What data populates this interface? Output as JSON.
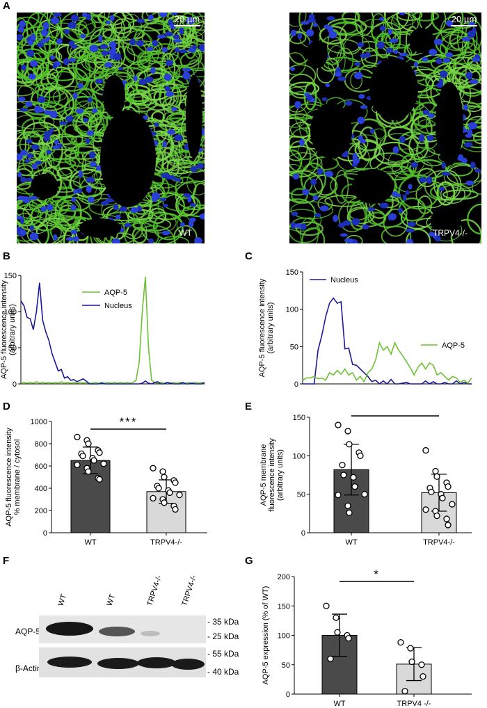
{
  "panels": {
    "A": "A",
    "B": "B",
    "C": "C",
    "D": "D",
    "E": "E",
    "F": "F",
    "G": "G"
  },
  "micrographs": {
    "left": {
      "scale": "20 µm",
      "label": "WT"
    },
    "right": {
      "scale": "20 µm",
      "label": "TRPV4-/-"
    }
  },
  "colors": {
    "aqp5": "#6cc233",
    "nucleus": "#1a1a9a",
    "wt_bar": "#4a4a4a",
    "ko_bar": "#d9d9d9"
  },
  "chart_data": [
    {
      "id": "B",
      "type": "line",
      "ylabel": [
        "AQP-5 fluorescence intensity",
        "(arbitrary units)"
      ],
      "ylim": [
        0,
        150
      ],
      "yticks": [
        0,
        50,
        100,
        150
      ],
      "legend": "top-center",
      "series": [
        {
          "name": "AQP-5",
          "color": "#6cc233",
          "y": [
            2,
            2,
            1,
            2,
            1,
            3,
            1,
            2,
            1,
            2,
            1,
            2,
            1,
            3,
            1,
            2,
            1,
            2,
            1,
            2,
            1,
            2,
            1,
            1,
            2,
            1,
            2,
            1,
            2,
            1,
            2,
            1,
            2,
            1,
            2,
            1,
            2,
            5,
            30,
            100,
            148,
            50,
            5,
            2,
            1,
            2,
            1,
            2,
            1,
            2,
            1,
            2,
            1,
            1,
            2,
            1,
            2,
            1,
            2,
            1
          ]
        },
        {
          "name": "Nucleus",
          "color": "#1a1a9a",
          "y": [
            115,
            108,
            92,
            90,
            75,
            100,
            140,
            88,
            72,
            60,
            42,
            30,
            18,
            20,
            8,
            10,
            5,
            6,
            3,
            5,
            7,
            4,
            0,
            0,
            0,
            0,
            1,
            0,
            0,
            0,
            0,
            0,
            0,
            0,
            0,
            0,
            0,
            0,
            0,
            1,
            4,
            1,
            0,
            2,
            3,
            0,
            0,
            2,
            1,
            0,
            0,
            0,
            2,
            0,
            0,
            1,
            0,
            0,
            0,
            2
          ]
        }
      ]
    },
    {
      "id": "C",
      "type": "line",
      "ylabel": [
        "AQP-5 fluorescence intensity",
        "(arbitrary units)"
      ],
      "ylim": [
        0,
        150
      ],
      "yticks": [
        0,
        50,
        100,
        150
      ],
      "legend": "top-left",
      "series": [
        {
          "name": "Nucleus",
          "color": "#1a1a9a",
          "y": [
            0,
            0,
            0,
            0,
            45,
            65,
            90,
            108,
            115,
            108,
            110,
            47,
            48,
            26,
            25,
            20,
            15,
            10,
            3,
            5,
            0,
            4,
            0,
            6,
            0,
            0,
            1,
            2,
            0,
            0,
            0,
            0,
            4,
            0,
            3,
            0,
            0,
            2,
            0,
            0,
            4,
            0,
            2,
            0,
            0
          ]
        },
        {
          "name": "AQP-5",
          "color": "#6cc233",
          "y": [
            5,
            8,
            8,
            10,
            7,
            8,
            5,
            15,
            12,
            18,
            13,
            20,
            12,
            15,
            5,
            10,
            3,
            15,
            20,
            32,
            55,
            45,
            50,
            40,
            55,
            45,
            38,
            30,
            22,
            12,
            22,
            28,
            20,
            28,
            25,
            12,
            15,
            10,
            5,
            10,
            8,
            2,
            5,
            1,
            8
          ]
        }
      ]
    },
    {
      "id": "D",
      "type": "bar",
      "ylabel": [
        "AQP-5 fluorescence intensity",
        "% membrane / cytosol"
      ],
      "ylim": [
        0,
        1000
      ],
      "yticks": [
        0,
        200,
        400,
        600,
        800,
        1000
      ],
      "categories": [
        "WT",
        "TRPV4-/-"
      ],
      "values": [
        650,
        370
      ],
      "sd": [
        120,
        105
      ],
      "significance": "***",
      "points": [
        [
          860,
          830,
          800,
          740,
          720,
          710,
          690,
          670,
          650,
          620,
          610,
          580,
          550,
          490,
          480
        ],
        [
          580,
          550,
          500,
          470,
          450,
          420,
          400,
          380,
          360,
          340,
          310,
          300,
          270,
          240,
          210
        ]
      ]
    },
    {
      "id": "E",
      "type": "bar",
      "ylabel": [
        "AQP-5 membrane",
        "fluorescence intensity",
        "(arbitrary units)"
      ],
      "ylim": [
        0,
        150
      ],
      "yticks": [
        0,
        50,
        100,
        150
      ],
      "categories": [
        "WT",
        "TRPV4-/-"
      ],
      "values": [
        82,
        52
      ],
      "sd": [
        33,
        24
      ],
      "significance": "**",
      "points": [
        [
          140,
          132,
          115,
          104,
          100,
          88,
          75,
          72,
          60,
          50,
          49,
          35,
          26
        ],
        [
          107,
          80,
          73,
          65,
          60,
          58,
          53,
          50,
          45,
          37,
          30,
          28,
          22,
          18,
          10
        ]
      ]
    },
    {
      "id": "G",
      "type": "bar",
      "ylabel": [
        "AQP-5 expression (% of WT)"
      ],
      "ylim": [
        0,
        200
      ],
      "yticks": [
        0,
        50,
        100,
        150,
        200
      ],
      "categories": [
        "WT",
        "TRPV4 -/-"
      ],
      "values": [
        100,
        51
      ],
      "sd": [
        36,
        28
      ],
      "significance": "*",
      "points": [
        [
          150,
          130,
          105,
          100,
          95,
          60
        ],
        [
          88,
          78,
          55,
          50,
          30,
          5
        ]
      ]
    }
  ],
  "western": {
    "lanes": [
      "WT",
      "WT",
      "TRPV4-/-",
      "TRPV4-/-"
    ],
    "rows": [
      "AQP-5",
      "β-Actin"
    ],
    "markers": [
      "- 35 kDa",
      "- 25 kDa",
      "- 55 kDa",
      "- 40 kDa"
    ]
  }
}
